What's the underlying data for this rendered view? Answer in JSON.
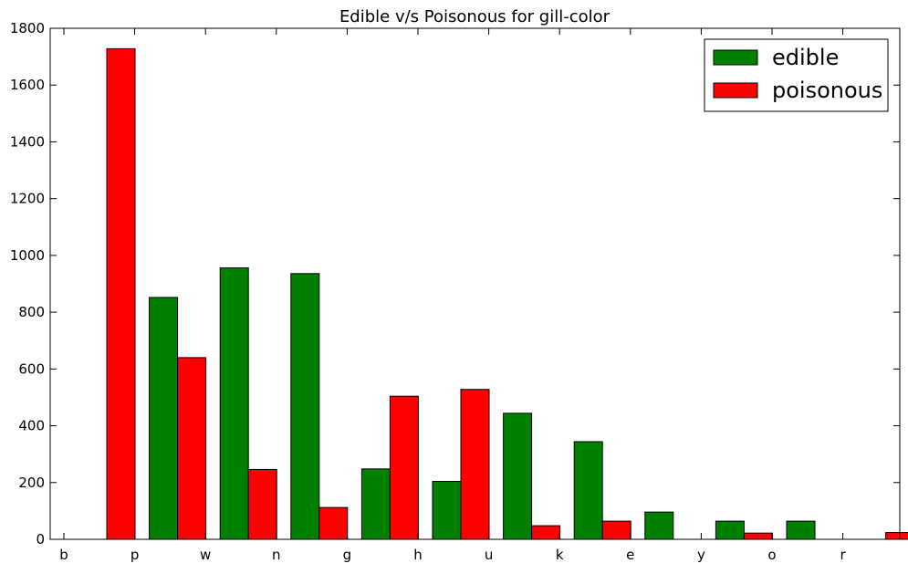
{
  "chart_data": {
    "type": "bar",
    "title": "Edible v/s Poisonous for gill-color",
    "xlabel": "",
    "ylabel": "",
    "categories": [
      "b",
      "p",
      "w",
      "n",
      "g",
      "h",
      "u",
      "k",
      "e",
      "y",
      "o",
      "r"
    ],
    "series": [
      {
        "name": "edible",
        "color": "#008000",
        "values": [
          0,
          852,
          956,
          936,
          248,
          204,
          444,
          344,
          96,
          64,
          64,
          0
        ]
      },
      {
        "name": "poisonous",
        "color": "#ff0000",
        "values": [
          1728,
          640,
          246,
          112,
          504,
          528,
          48,
          64,
          0,
          22,
          0,
          24
        ]
      }
    ],
    "ylim": [
      0,
      1800
    ],
    "yticks": [
      0,
      200,
      400,
      600,
      800,
      1000,
      1200,
      1400,
      1600,
      1800
    ],
    "grid": false,
    "legend_position": "top-right"
  }
}
